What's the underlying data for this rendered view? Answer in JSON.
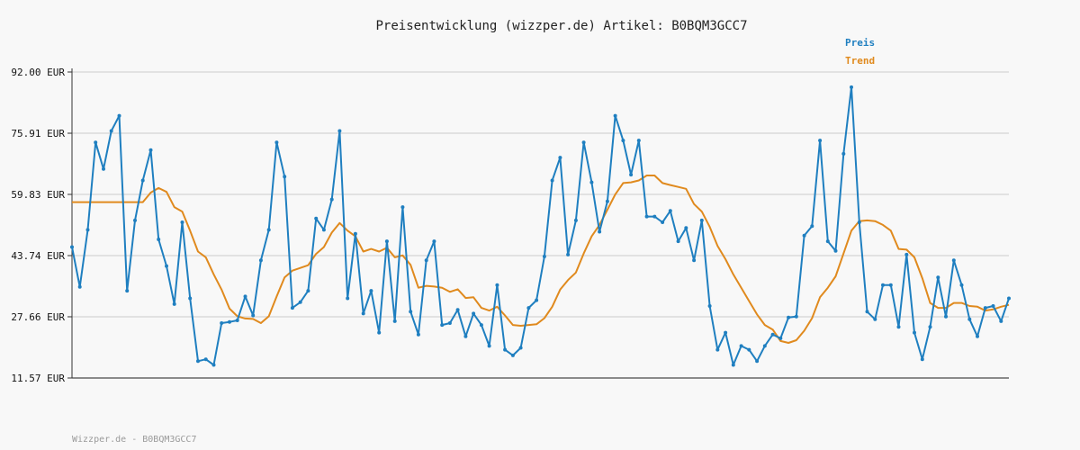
{
  "chart_data": {
    "type": "line",
    "title": "Preisentwicklung (wizzper.de) Artikel: B0BQM3GCC7",
    "footer": "Wizzper.de - B0BQM3GCC7",
    "ylim": [
      11.57,
      92.0
    ],
    "ytick_values": [
      92.0,
      75.91,
      59.83,
      43.74,
      27.66,
      11.57
    ],
    "ytick_labels": [
      "92.00 EUR",
      "75.91 EUR",
      "59.83 EUR",
      "43.74 EUR",
      "27.66 EUR",
      "11.57 EUR"
    ],
    "grid": true,
    "legend_position": "top-right",
    "series": [
      {
        "name": "Preis",
        "color": "#1f7fc0",
        "values": [
          46,
          35.5,
          50.5,
          73.5,
          66.5,
          76.5,
          80.5,
          34.5,
          53,
          63.5,
          71.5,
          48,
          41,
          31,
          52.5,
          32.5,
          16,
          16.5,
          15,
          26,
          26.3,
          26.7,
          33,
          28,
          42.5,
          50.5,
          73.5,
          64.5,
          30,
          31.5,
          34.5,
          53.5,
          50.5,
          58.5,
          76.5,
          32.5,
          49.5,
          28.5,
          34.5,
          23.5,
          47.5,
          26.5,
          56.5,
          29,
          23,
          42.5,
          47.5,
          25.5,
          26,
          29.5,
          22.5,
          28.5,
          25.5,
          20,
          36,
          19,
          17.5,
          19.5,
          30,
          32,
          43.5,
          63.5,
          69.5,
          44,
          53,
          73.5,
          63,
          50,
          58,
          80.5,
          74,
          65,
          74,
          54,
          54,
          52.5,
          55.5,
          47.5,
          51,
          42.5,
          53,
          30.5,
          19,
          23.5,
          15,
          20,
          19,
          16,
          20,
          23,
          22,
          27.5,
          27.7,
          49,
          51.5,
          74,
          47.5,
          45,
          70.5,
          88,
          52.5,
          29,
          27,
          36,
          36,
          25,
          44,
          23.5,
          16.5,
          25,
          38,
          27.7,
          42.5,
          36,
          27,
          22.5,
          30,
          30.5,
          26.5,
          32.5
        ]
      },
      {
        "name": "Trend",
        "color": "#e08a1e",
        "values": [
          57.8,
          57.8,
          57.8,
          57.8,
          57.8,
          57.8,
          57.8,
          57.8,
          57.8,
          57.8,
          60.3,
          61.5,
          60.5,
          56.5,
          55.3,
          50.3,
          44.8,
          43.3,
          38.8,
          34.8,
          29.8,
          27.8,
          27.2,
          27.1,
          26,
          27.8,
          33,
          38,
          39.8,
          40.5,
          41.2,
          44.2,
          46,
          49.8,
          52.3,
          50.3,
          48.8,
          44.8,
          45.5,
          44.8,
          45.8,
          43.3,
          43.8,
          41.3,
          35.3,
          35.8,
          35.6,
          35.3,
          34.2,
          34.9,
          32.6,
          32.8,
          30,
          29.3,
          30.3,
          28,
          25.5,
          25.3,
          25.5,
          25.7,
          27.3,
          30.3,
          34.8,
          37.3,
          39.3,
          44.3,
          48.8,
          51.8,
          55.8,
          59.8,
          62.8,
          63,
          63.5,
          64.8,
          64.8,
          62.8,
          62.3,
          61.8,
          61.3,
          57.3,
          55.3,
          51.3,
          46.3,
          42.8,
          38.8,
          35.3,
          31.8,
          28.3,
          25.5,
          24.3,
          21.3,
          20.8,
          21.5,
          24,
          27.3,
          32.8,
          35.3,
          38.3,
          44.3,
          50.3,
          52.8,
          53,
          52.8,
          51.8,
          50.3,
          45.5,
          45.3,
          43.3,
          37.8,
          31.3,
          30,
          30,
          31.3,
          31.3,
          30.5,
          30.3,
          29.3,
          29.6,
          30.3,
          30.8
        ]
      }
    ]
  }
}
